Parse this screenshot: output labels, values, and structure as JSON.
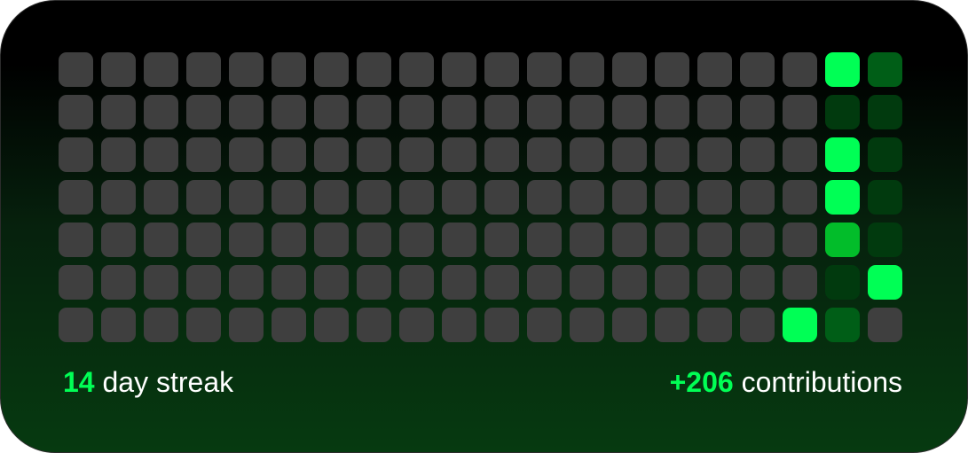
{
  "colors": {
    "empty": "#3f3f3f",
    "level_1": "#013a0e",
    "level_2": "#005e17",
    "level_3": "#02bd2a",
    "level_4": "#00ff55",
    "accent": "#00ff55"
  },
  "grid": {
    "columns": 20,
    "rows": 7,
    "levels": [
      [
        0,
        0,
        0,
        0,
        0,
        0,
        0,
        0,
        0,
        0,
        0,
        0,
        0,
        0,
        0,
        0,
        0,
        0,
        4,
        2
      ],
      [
        0,
        0,
        0,
        0,
        0,
        0,
        0,
        0,
        0,
        0,
        0,
        0,
        0,
        0,
        0,
        0,
        0,
        0,
        1,
        1
      ],
      [
        0,
        0,
        0,
        0,
        0,
        0,
        0,
        0,
        0,
        0,
        0,
        0,
        0,
        0,
        0,
        0,
        0,
        0,
        4,
        1
      ],
      [
        0,
        0,
        0,
        0,
        0,
        0,
        0,
        0,
        0,
        0,
        0,
        0,
        0,
        0,
        0,
        0,
        0,
        0,
        4,
        1
      ],
      [
        0,
        0,
        0,
        0,
        0,
        0,
        0,
        0,
        0,
        0,
        0,
        0,
        0,
        0,
        0,
        0,
        0,
        0,
        3,
        1
      ],
      [
        0,
        0,
        0,
        0,
        0,
        0,
        0,
        0,
        0,
        0,
        0,
        0,
        0,
        0,
        0,
        0,
        0,
        0,
        1,
        4
      ],
      [
        0,
        0,
        0,
        0,
        0,
        0,
        0,
        0,
        0,
        0,
        0,
        0,
        0,
        0,
        0,
        0,
        0,
        4,
        2,
        0
      ]
    ]
  },
  "footer": {
    "streak_value": "14",
    "streak_label": "day streak",
    "contributions_value": "+206",
    "contributions_label": "contributions"
  }
}
